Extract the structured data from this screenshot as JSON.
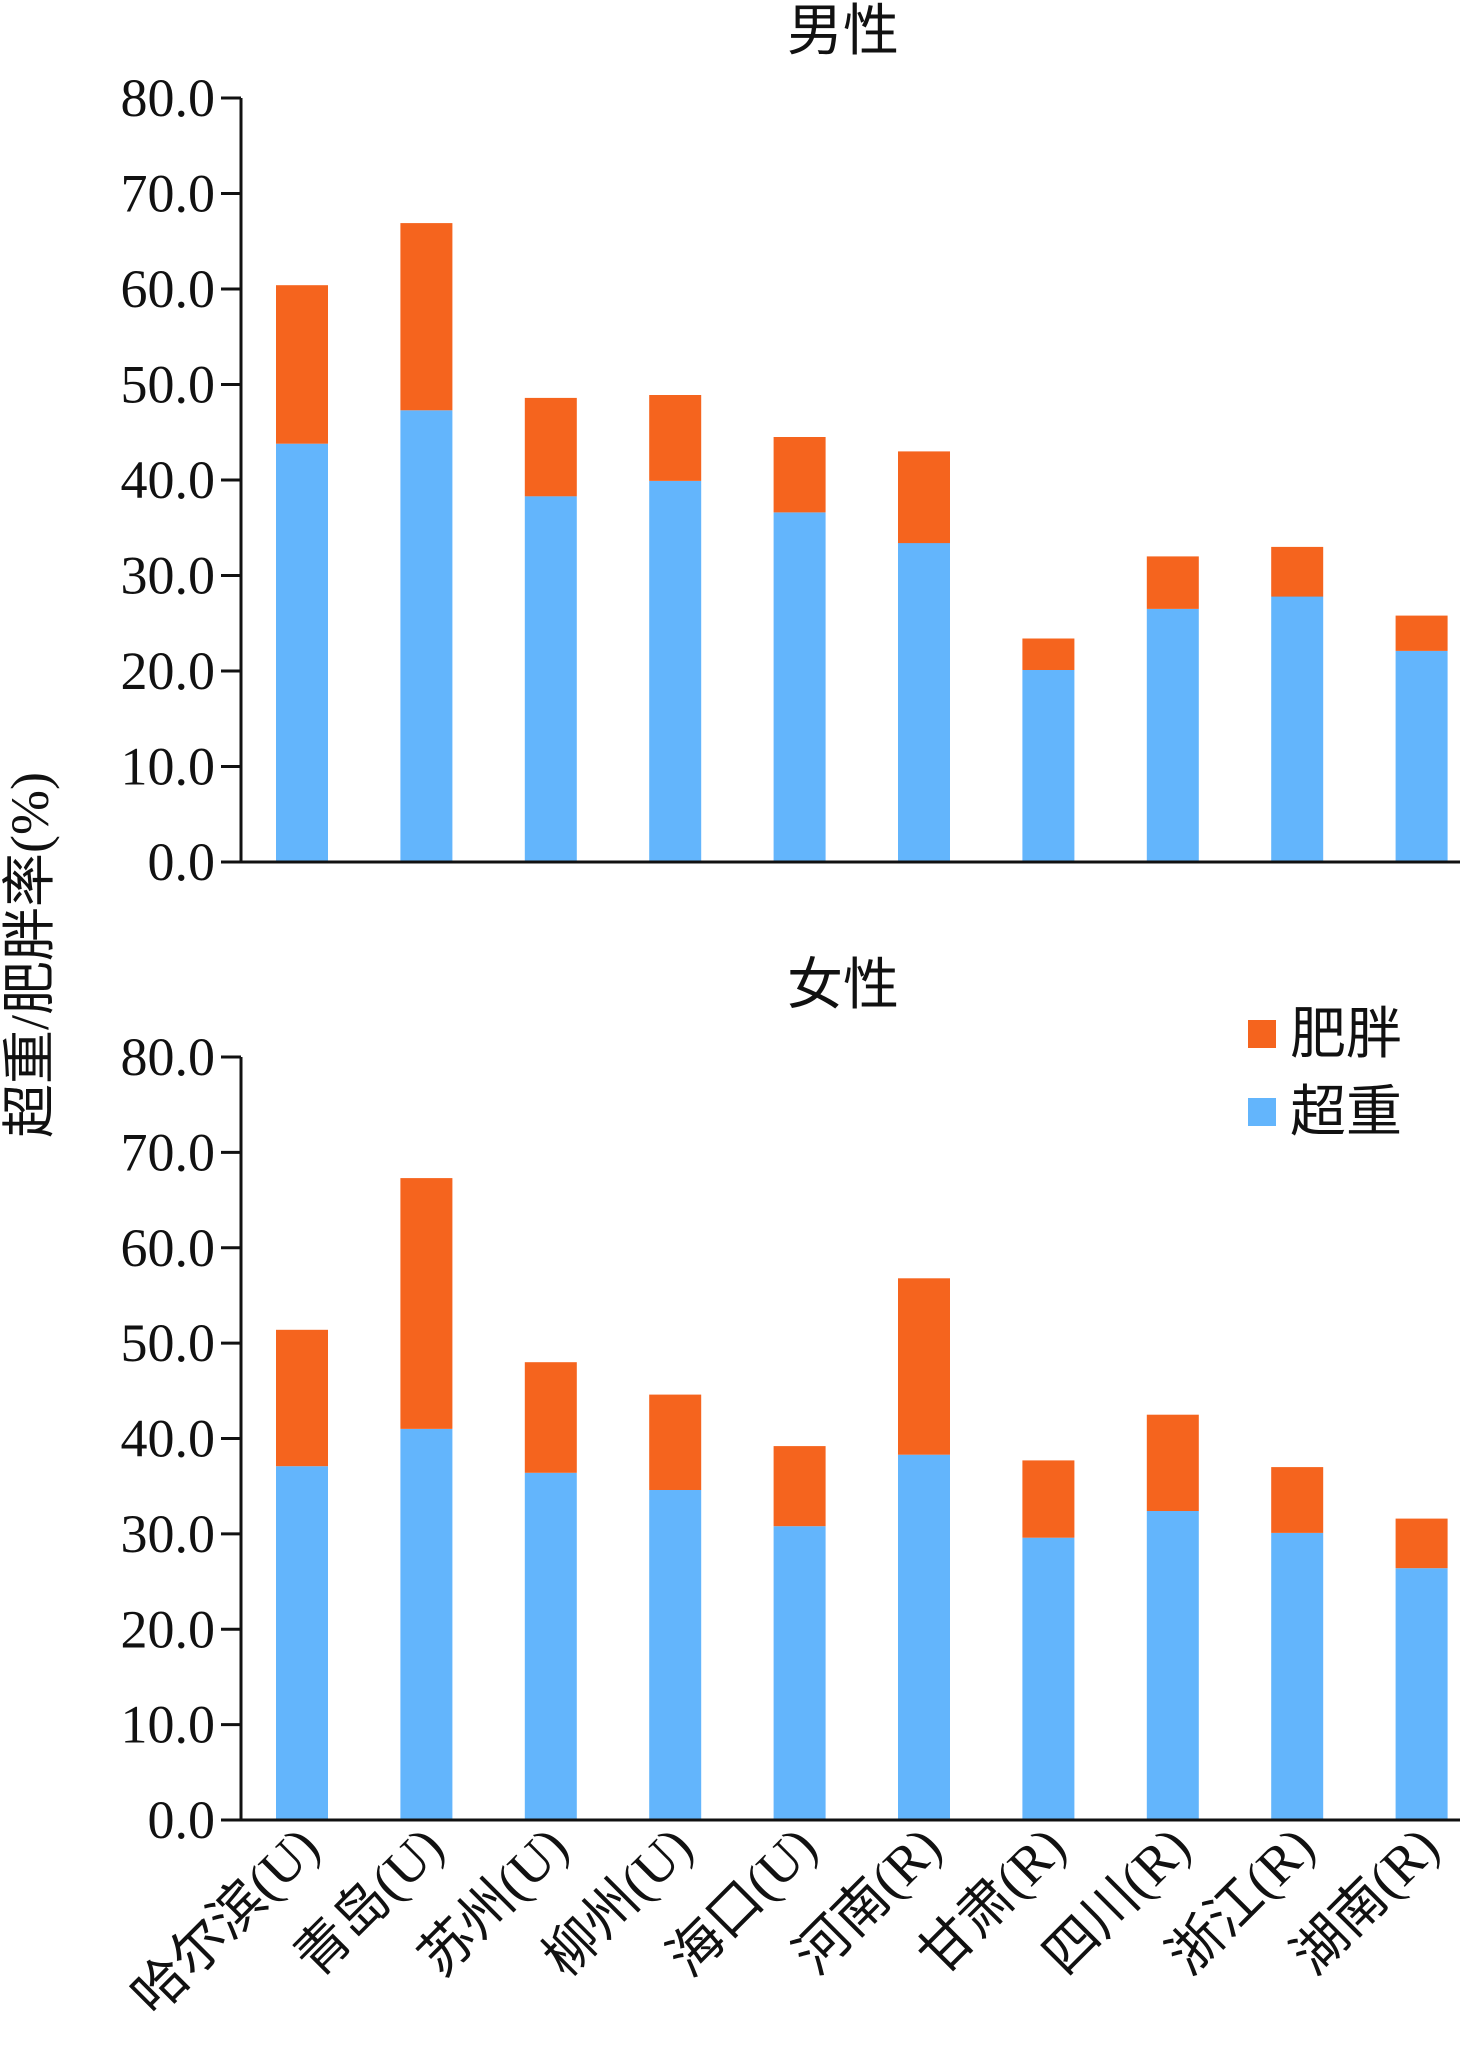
{
  "chart_data": [
    {
      "type": "bar",
      "stacked": true,
      "title": "男性",
      "ylabel": "超重/肥胖率(%)",
      "ylim": [
        0,
        80
      ],
      "yticks": [
        "0.0",
        "10.0",
        "20.0",
        "30.0",
        "40.0",
        "50.0",
        "60.0",
        "70.0",
        "80.0"
      ],
      "categories": [
        "哈尔滨(U)",
        "青岛(U)",
        "苏州(U)",
        "柳州(U)",
        "海口(U)",
        "河南(R)",
        "甘肃(R)",
        "四川(R)",
        "浙江(R)",
        "湖南(R)"
      ],
      "series": [
        {
          "name": "超重",
          "color": "#63b5fc",
          "values": [
            43.8,
            47.3,
            38.3,
            39.9,
            36.6,
            33.4,
            20.1,
            26.5,
            27.8,
            22.1
          ]
        },
        {
          "name": "肥胖",
          "color": "#f5641e",
          "values": [
            16.6,
            19.6,
            10.3,
            9.0,
            7.9,
            9.6,
            3.3,
            5.5,
            5.2,
            3.7
          ]
        }
      ],
      "grid": false
    },
    {
      "type": "bar",
      "stacked": true,
      "title": "女性",
      "ylabel": "超重/肥胖率(%)",
      "ylim": [
        0,
        80
      ],
      "yticks": [
        "0.0",
        "10.0",
        "20.0",
        "30.0",
        "40.0",
        "50.0",
        "60.0",
        "70.0",
        "80.0"
      ],
      "categories": [
        "哈尔滨(U)",
        "青岛(U)",
        "苏州(U)",
        "柳州(U)",
        "海口(U)",
        "河南(R)",
        "甘肃(R)",
        "四川(R)",
        "浙江(R)",
        "湖南(R)"
      ],
      "series": [
        {
          "name": "超重",
          "color": "#63b5fc",
          "values": [
            37.1,
            41.0,
            36.4,
            34.6,
            30.8,
            38.3,
            29.6,
            32.4,
            30.1,
            26.4
          ]
        },
        {
          "name": "肥胖",
          "color": "#f5641e",
          "values": [
            14.3,
            26.3,
            11.6,
            10.0,
            8.4,
            18.5,
            8.1,
            10.1,
            6.9,
            5.2
          ]
        }
      ],
      "grid": false
    }
  ],
  "legend": {
    "placement": "top-right of lower panel",
    "items": [
      {
        "label": "肥胖",
        "color": "#f5641e"
      },
      {
        "label": "超重",
        "color": "#63b5fc"
      }
    ]
  }
}
